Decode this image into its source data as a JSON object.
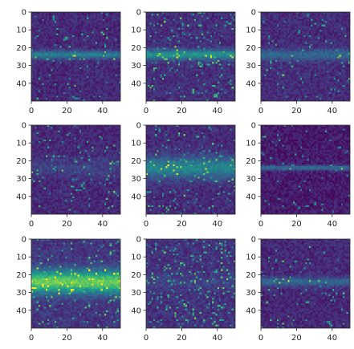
{
  "chart_data": [
    {
      "type": "heatmap",
      "colormap": "viridis",
      "x_ticks": [
        0,
        20,
        40
      ],
      "y_ticks": [
        0,
        10,
        20,
        30,
        40
      ],
      "xlim": [
        0,
        50
      ],
      "ylim": [
        50,
        0
      ],
      "band_center_row": 24,
      "band_width": 1.6,
      "band_intensity": 0.32,
      "background": 0.12,
      "speckle_density": 0.03,
      "seed": 11
    },
    {
      "type": "heatmap",
      "colormap": "viridis",
      "x_ticks": [
        0,
        20,
        40
      ],
      "y_ticks": [
        0,
        10,
        20,
        30,
        40
      ],
      "xlim": [
        0,
        50
      ],
      "ylim": [
        50,
        0
      ],
      "band_center_row": 24,
      "band_width": 2.0,
      "band_intensity": 0.38,
      "background": 0.14,
      "speckle_density": 0.06,
      "seed": 23
    },
    {
      "type": "heatmap",
      "colormap": "viridis",
      "x_ticks": [
        0,
        20,
        40
      ],
      "y_ticks": [
        0,
        10,
        20,
        30,
        40
      ],
      "xlim": [
        0,
        50
      ],
      "ylim": [
        50,
        0
      ],
      "band_center_row": 24,
      "band_width": 2.2,
      "band_intensity": 0.22,
      "background": 0.13,
      "speckle_density": 0.03,
      "seed": 37
    },
    {
      "type": "heatmap",
      "colormap": "viridis",
      "x_ticks": [
        0,
        20,
        40
      ],
      "y_ticks": [
        0,
        10,
        20,
        30,
        40
      ],
      "xlim": [
        0,
        50
      ],
      "ylim": [
        50,
        0
      ],
      "band_center_row": 24,
      "band_width": 4.0,
      "band_intensity": 0.08,
      "background": 0.12,
      "speckle_density": 0.04,
      "seed": 41
    },
    {
      "type": "heatmap",
      "colormap": "viridis",
      "x_ticks": [
        0,
        20,
        40
      ],
      "y_ticks": [
        0,
        10,
        20,
        30,
        40
      ],
      "xlim": [
        0,
        50
      ],
      "ylim": [
        50,
        0
      ],
      "band_center_row": 24,
      "band_width": 4.2,
      "band_intensity": 0.34,
      "background": 0.13,
      "speckle_density": 0.05,
      "seed": 53
    },
    {
      "type": "heatmap",
      "colormap": "viridis",
      "x_ticks": [
        0,
        20,
        40
      ],
      "y_ticks": [
        0,
        10,
        20,
        30,
        40
      ],
      "xlim": [
        0,
        50
      ],
      "ylim": [
        50,
        0
      ],
      "band_center_row": 24,
      "band_width": 1.0,
      "band_intensity": 0.3,
      "background": 0.08,
      "speckle_density": 0.02,
      "seed": 67
    },
    {
      "type": "heatmap",
      "colormap": "viridis",
      "x_ticks": [
        0,
        20,
        40
      ],
      "y_ticks": [
        0,
        10,
        20,
        30,
        40
      ],
      "xlim": [
        0,
        50
      ],
      "ylim": [
        50,
        0
      ],
      "band_center_row": 24,
      "band_width": 4.6,
      "band_intensity": 0.62,
      "background": 0.16,
      "speckle_density": 0.05,
      "seed": 79
    },
    {
      "type": "heatmap",
      "colormap": "viridis",
      "x_ticks": [
        0,
        20,
        40
      ],
      "y_ticks": [
        0,
        10,
        20,
        30,
        40
      ],
      "xlim": [
        0,
        50
      ],
      "ylim": [
        50,
        0
      ],
      "band_center_row": 24,
      "band_width": 3.0,
      "band_intensity": 0.06,
      "background": 0.15,
      "speckle_density": 0.08,
      "seed": 83
    },
    {
      "type": "heatmap",
      "colormap": "viridis",
      "x_ticks": [
        0,
        20,
        40
      ],
      "y_ticks": [
        0,
        10,
        20,
        30,
        40
      ],
      "xlim": [
        0,
        50
      ],
      "ylim": [
        50,
        0
      ],
      "band_center_row": 24,
      "band_width": 1.8,
      "band_intensity": 0.22,
      "background": 0.12,
      "speckle_density": 0.03,
      "seed": 97
    }
  ]
}
